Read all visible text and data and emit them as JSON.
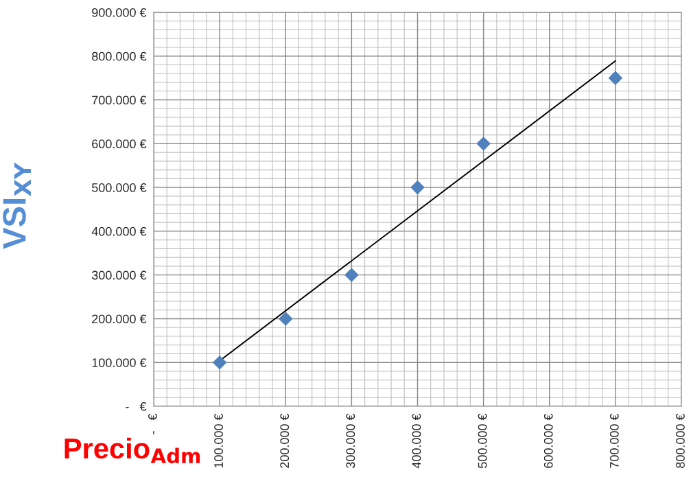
{
  "chart_data": {
    "type": "scatter",
    "xlabel": "Precio$_{Adm}$",
    "ylabel": "VSI$_{XY}$",
    "series": [
      {
        "color": "#4f81bd",
        "marker": "diamond",
        "x": [
          100000,
          200000,
          300000,
          400000,
          500000,
          700000
        ],
        "values": [
          100000,
          200000,
          300000,
          500000,
          600000,
          750000
        ]
      },
      {
        "type": "line",
        "color": "#000000",
        "marker": "none",
        "line_style": "solid",
        "x": [
          100000,
          700000
        ],
        "values": [
          104000,
          789000
        ]
      }
    ],
    "xlim": [
      0,
      800000
    ],
    "ylim": [
      0,
      900000
    ],
    "xticks": [
      {
        "value": 0,
        "label": "-   €"
      },
      {
        "value": 100000,
        "label": "100.000 €"
      },
      {
        "value": 200000,
        "label": "200.000 €"
      },
      {
        "value": 300000,
        "label": "300.000 €"
      },
      {
        "value": 400000,
        "label": "400.000 €"
      },
      {
        "value": 500000,
        "label": "500.000 €"
      },
      {
        "value": 600000,
        "label": "600.000 €"
      },
      {
        "value": 700000,
        "label": "700.000 €"
      },
      {
        "value": 800000,
        "label": "800.000 €"
      }
    ],
    "yticks": [
      {
        "value": 0,
        "label": "-   €"
      },
      {
        "value": 100000,
        "label": "100.000 €"
      },
      {
        "value": 200000,
        "label": "200.000 €"
      },
      {
        "value": 300000,
        "label": "300.000 €"
      },
      {
        "value": 400000,
        "label": "400.000 €"
      },
      {
        "value": 500000,
        "label": "500.000 €"
      },
      {
        "value": 600000,
        "label": "600.000 €"
      },
      {
        "value": 700000,
        "label": "700.000 €"
      },
      {
        "value": 800000,
        "label": "800.000 €"
      },
      {
        "value": 900000,
        "label": "900.000 €"
      }
    ],
    "grid": true
  }
}
